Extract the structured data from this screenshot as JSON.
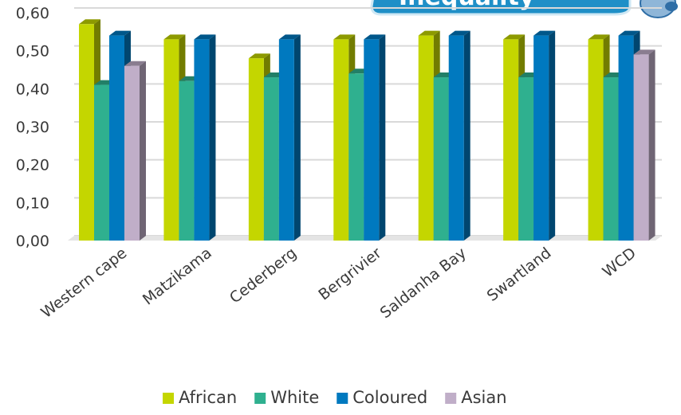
{
  "banner": {
    "text": "Inequality"
  },
  "chart_data": {
    "type": "bar",
    "categories": [
      "Western cape",
      "Matzikama",
      "Cederberg",
      "Bergrivier",
      "Saldanha Bay",
      "Swartland",
      "WCD"
    ],
    "series": [
      {
        "name": "African",
        "color": "#c4d600",
        "values": [
          0.57,
          0.53,
          0.48,
          0.53,
          0.54,
          0.53,
          0.53
        ]
      },
      {
        "name": "White",
        "color": "#2fb08f",
        "values": [
          0.41,
          0.42,
          0.43,
          0.44,
          0.43,
          0.43,
          0.43
        ]
      },
      {
        "name": "Coloured",
        "color": "#0079bf",
        "values": [
          0.54,
          0.53,
          0.53,
          0.53,
          0.54,
          0.54,
          0.54
        ]
      },
      {
        "name": "Asian",
        "color": "#c0aec8",
        "values": [
          0.46,
          null,
          null,
          null,
          null,
          null,
          0.49
        ]
      }
    ],
    "yticks": [
      "0,00",
      "0,10",
      "0,20",
      "0,30",
      "0,40",
      "0,50",
      "0,60"
    ],
    "ylim": [
      0,
      0.6
    ],
    "grid": true,
    "legend_position": "bottom",
    "xlabel": "",
    "ylabel": ""
  }
}
